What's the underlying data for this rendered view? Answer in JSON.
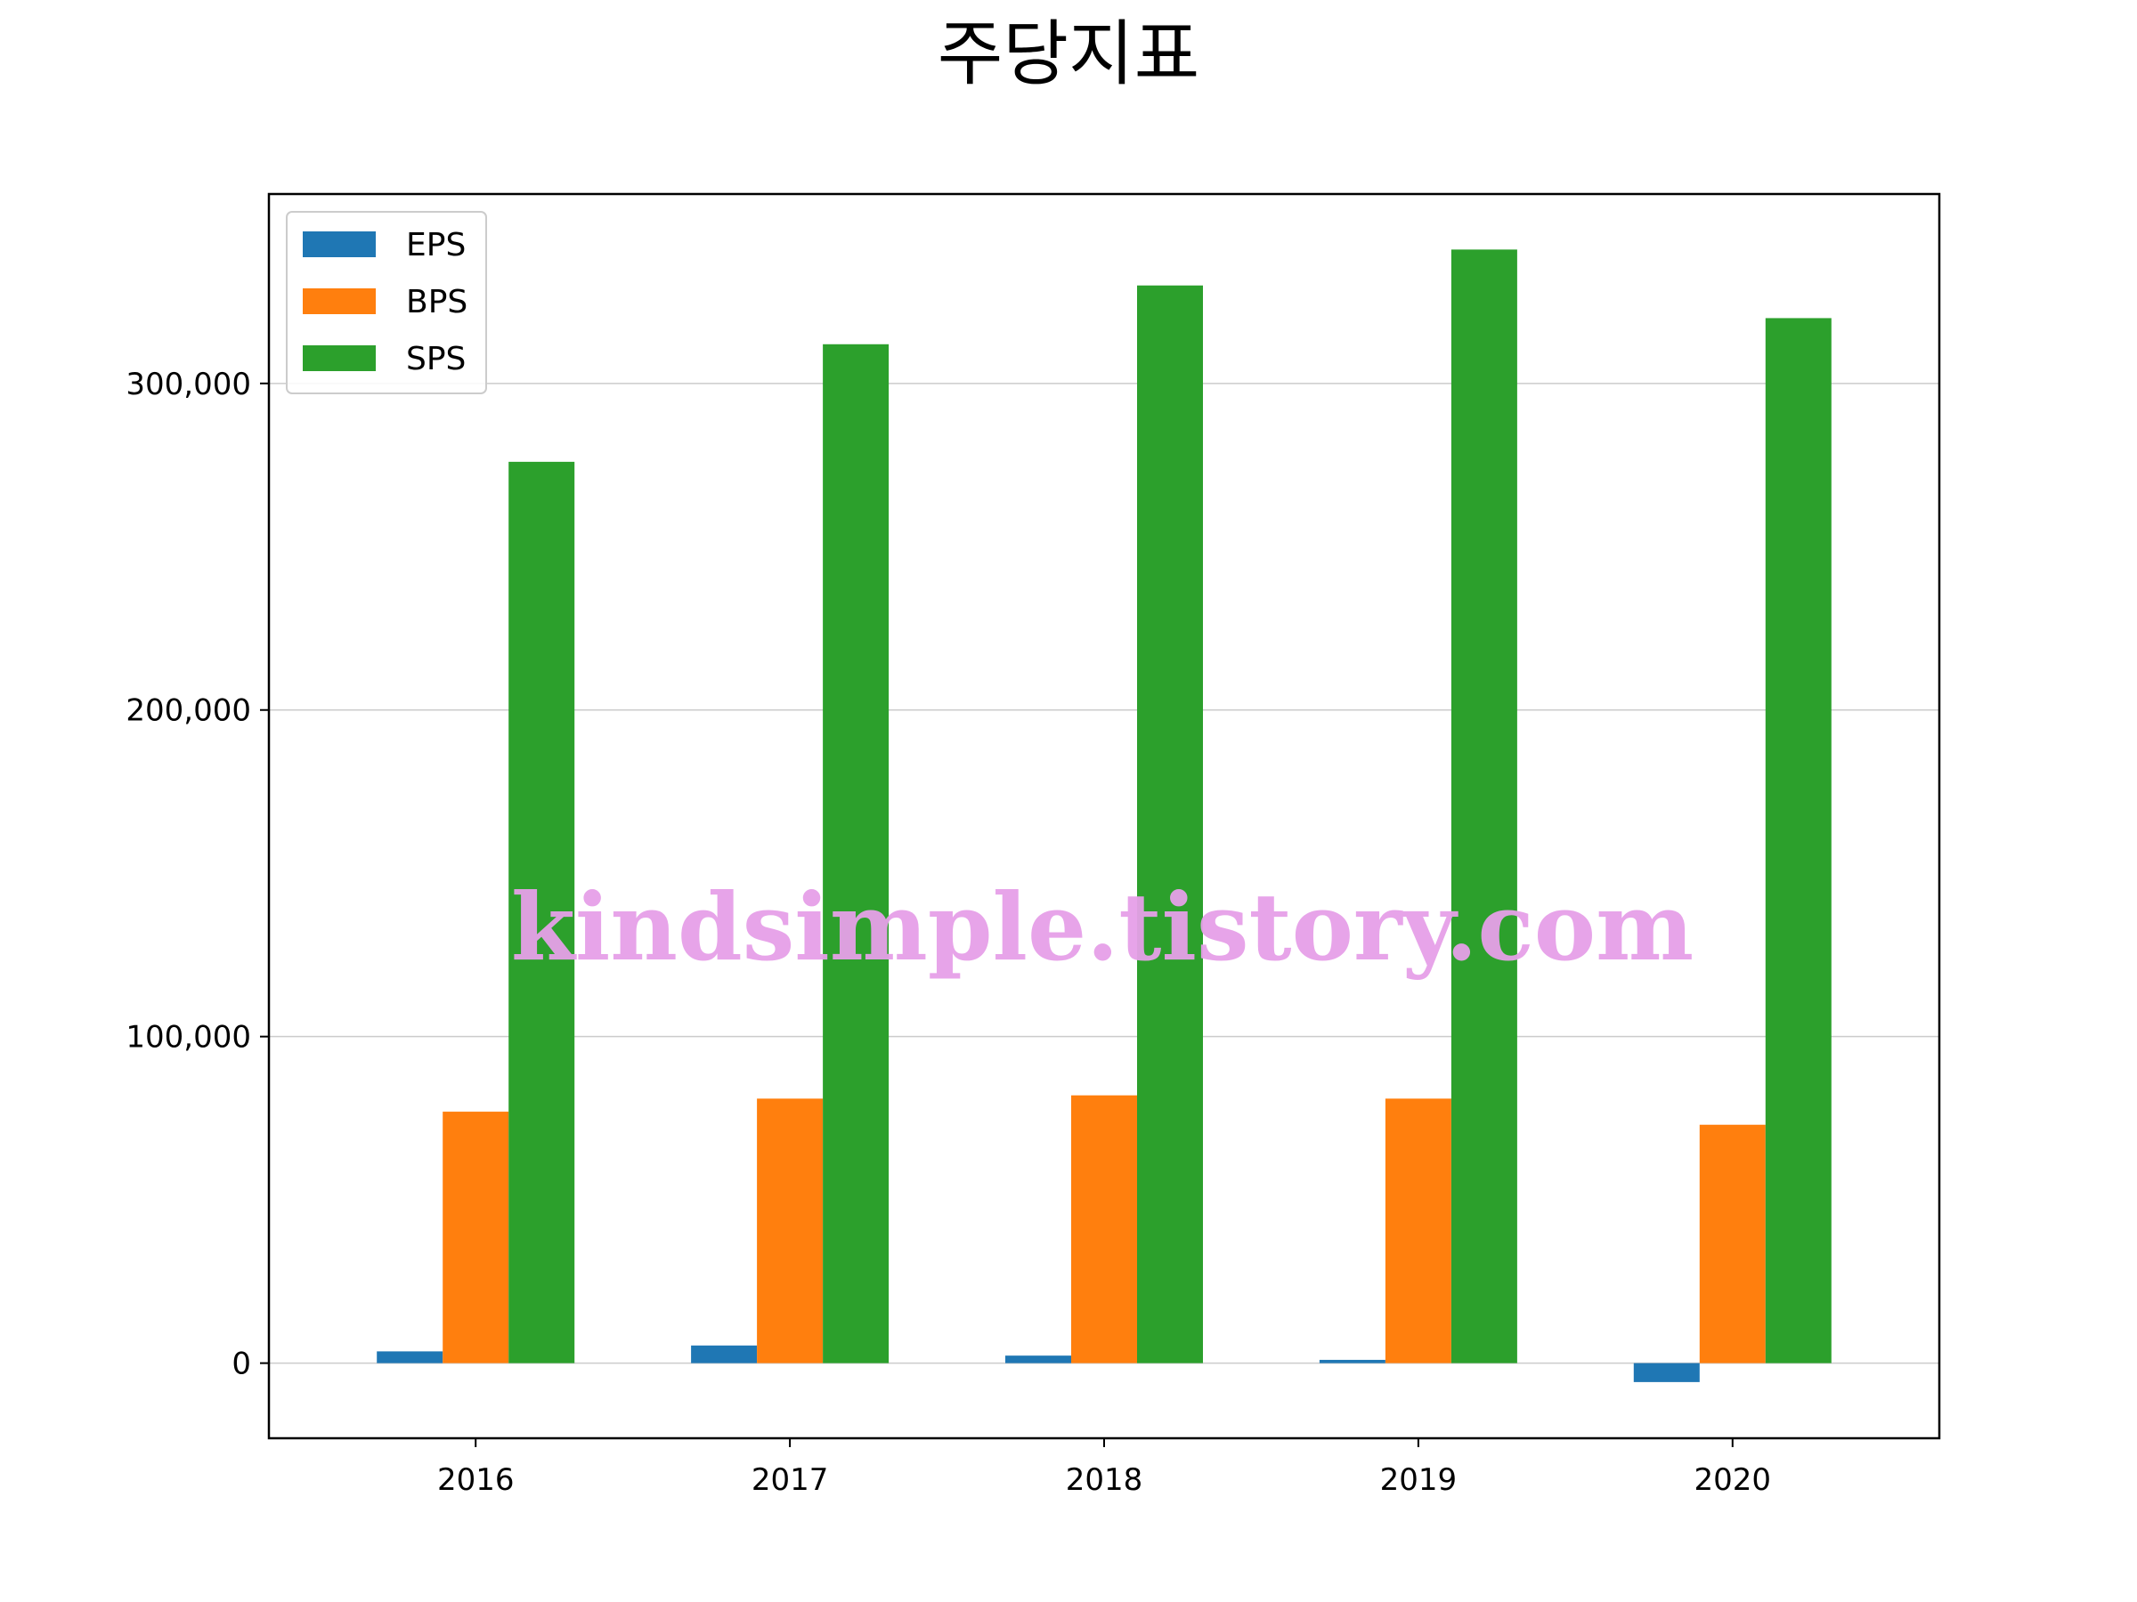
{
  "chart_data": {
    "type": "bar",
    "title": "주당지표",
    "xlabel": "",
    "ylabel": "",
    "categories": [
      "2016",
      "2017",
      "2018",
      "2019",
      "2020"
    ],
    "series": [
      {
        "name": "EPS",
        "color": "#1f77b4",
        "values": [
          3600,
          5400,
          2300,
          1000,
          -5800
        ]
      },
      {
        "name": "BPS",
        "color": "#ff7f0e",
        "values": [
          77000,
          81000,
          82000,
          81000,
          73000
        ]
      },
      {
        "name": "SPS",
        "color": "#2ca02c",
        "values": [
          276000,
          312000,
          330000,
          341000,
          320000
        ]
      }
    ],
    "ylim": [
      -23000,
      358000
    ],
    "yticks": [
      0,
      100000,
      200000,
      300000
    ],
    "ytick_labels": [
      "0",
      "100,000",
      "200,000",
      "300,000"
    ],
    "grid": "horizontal",
    "legend_position": "upper-left"
  },
  "watermark": "kindsimple.tistory.com"
}
